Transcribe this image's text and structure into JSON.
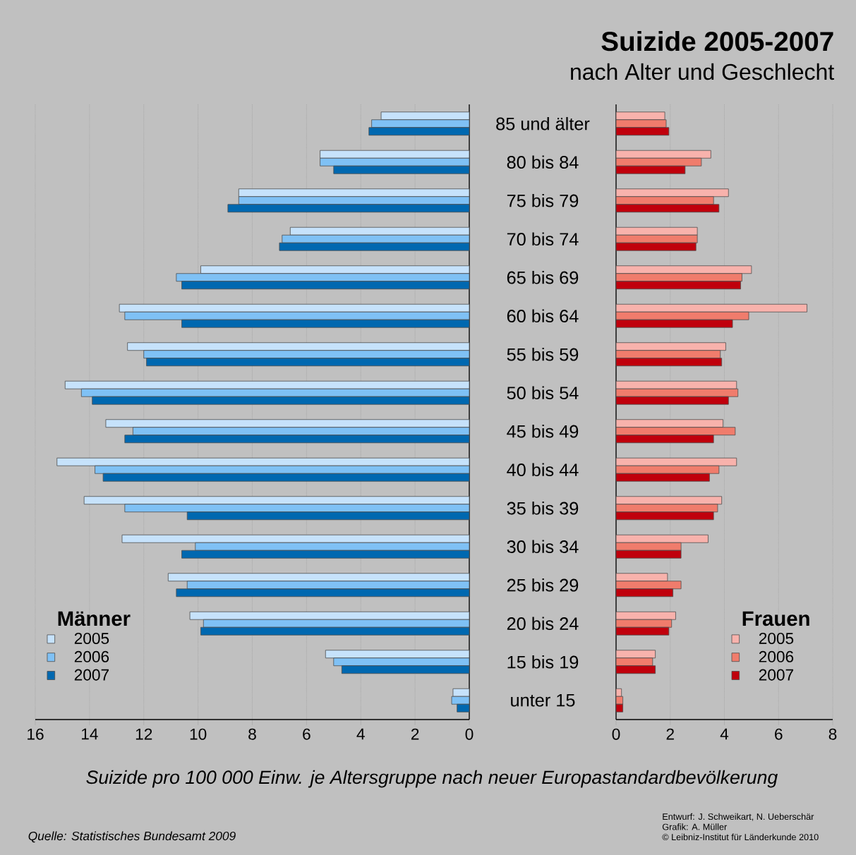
{
  "chart_data": [
    {
      "type": "bar",
      "orientation": "horizontal",
      "xlabel": "Suizide pro 100 000 Einw. je Altersgruppe nach neuer Europastandardbevölkerung",
      "legend_title": "Männer",
      "annotations": [
        "Quelle:  Statistisches Bundesamt 2009"
      ],
      "categories": [
        "85 und älter",
        "80 bis 84",
        "75 bis 79",
        "70 bis 74",
        "65 bis 69",
        "60 bis 64",
        "55 bis 59",
        "50 bis 54",
        "45 bis 49",
        "40 bis 44",
        "35 bis 39",
        "30 bis 34",
        "25 bis 29",
        "20 bis 24",
        "15 bis 19",
        "unter 15"
      ],
      "series": [
        {
          "name": "2005",
          "color": "#c6e2fb",
          "values": [
            3.25,
            5.5,
            8.5,
            6.6,
            9.9,
            12.9,
            12.6,
            14.9,
            13.4,
            15.2,
            14.2,
            12.8,
            11.1,
            10.3,
            5.3,
            0.6
          ]
        },
        {
          "name": "2006",
          "color": "#7fc1f5",
          "values": [
            3.6,
            5.5,
            8.5,
            6.9,
            10.8,
            12.7,
            12.0,
            14.3,
            12.4,
            13.8,
            12.7,
            10.1,
            10.4,
            9.8,
            5.0,
            0.65
          ]
        },
        {
          "name": "2007",
          "color": "#0068b0",
          "values": [
            3.7,
            5.0,
            8.9,
            7.0,
            10.6,
            10.6,
            11.9,
            13.9,
            12.7,
            13.5,
            10.4,
            10.6,
            10.8,
            9.9,
            4.7,
            0.45
          ]
        }
      ],
      "xlim": [
        16,
        0
      ],
      "xticks": [
        0,
        2,
        4,
        6,
        8,
        10,
        12,
        14,
        16
      ],
      "grid": "x",
      "legend": "bottom left"
    },
    {
      "type": "bar",
      "orientation": "horizontal",
      "title": "Suizide 2005-2007",
      "subtitle": "nach Alter und Geschlecht",
      "legend_title": "Frauen",
      "annotations": [
        "Entwurf: J. Schweikart, N. Ueberschär",
        "Grafik: A. Müller",
        "© Leibniz-Institut für Länderkunde 2010"
      ],
      "categories": [
        null,
        null,
        null,
        null,
        null,
        null,
        null,
        null,
        null,
        null,
        null,
        null,
        null,
        null,
        null,
        null
      ],
      "series": [
        {
          "name": "2005",
          "color": "#f8b2ac",
          "values": [
            1.8,
            3.5,
            4.15,
            3.0,
            5.0,
            7.05,
            4.05,
            4.45,
            3.95,
            4.45,
            3.9,
            3.4,
            1.9,
            2.2,
            1.45,
            0.2
          ]
        },
        {
          "name": "2006",
          "color": "#f07c6c",
          "values": [
            1.85,
            3.15,
            3.6,
            3.0,
            4.65,
            4.9,
            3.85,
            4.5,
            4.4,
            3.8,
            3.75,
            2.4,
            2.4,
            2.05,
            1.35,
            0.25
          ]
        },
        {
          "name": "2007",
          "color": "#c0000c",
          "values": [
            1.95,
            2.55,
            3.8,
            2.95,
            4.6,
            4.3,
            3.9,
            4.15,
            3.6,
            3.45,
            3.6,
            2.4,
            2.1,
            1.95,
            1.45,
            0.25
          ]
        }
      ],
      "xlim": [
        0,
        8
      ],
      "xticks": [
        0,
        2,
        4,
        6,
        8
      ],
      "grid": "x",
      "legend": "bottom right"
    }
  ]
}
